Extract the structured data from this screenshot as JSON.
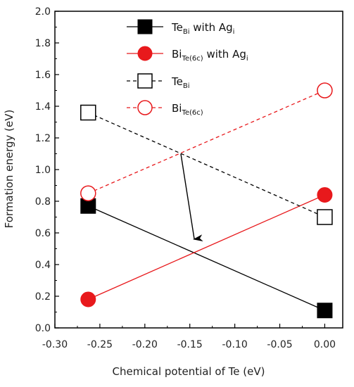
{
  "chart_data": {
    "type": "line",
    "xlabel": "Chemical potential of Te (eV)",
    "ylabel": "Formation energy (eV)",
    "xlim": [
      -0.3,
      0.02
    ],
    "ylim": [
      0.0,
      2.0
    ],
    "xticks": [
      -0.3,
      -0.25,
      -0.2,
      -0.15,
      -0.1,
      -0.05,
      0.0
    ],
    "xtick_labels": [
      "-0.30",
      "-0.25",
      "-0.20",
      "-0.15",
      "-0.10",
      "-0.05",
      "0.00"
    ],
    "yticks": [
      0.0,
      0.2,
      0.4,
      0.6,
      0.8,
      1.0,
      1.2,
      1.4,
      1.6,
      1.8,
      2.0
    ],
    "ytick_labels": [
      "0.0",
      "0.2",
      "0.4",
      "0.6",
      "0.8",
      "1.0",
      "1.2",
      "1.4",
      "1.6",
      "1.8",
      "2.0"
    ],
    "grid": false,
    "legend_position": "top-center",
    "series": [
      {
        "id": "tebi-agi",
        "label_main": "Te",
        "label_sub": "Bi",
        "label_rest": " with Ag",
        "label_rest_sub": "i",
        "color": "#000000",
        "dashed": false,
        "marker": "square",
        "filled": true,
        "x": [
          -0.263,
          0.0
        ],
        "y": [
          0.77,
          0.11
        ]
      },
      {
        "id": "bite-agi",
        "label_main": "Bi",
        "label_sub": "Te(6c)",
        "label_rest": " with Ag",
        "label_rest_sub": "i",
        "color": "#e8191c",
        "dashed": false,
        "marker": "circle",
        "filled": true,
        "x": [
          -0.263,
          0.0
        ],
        "y": [
          0.18,
          0.84
        ]
      },
      {
        "id": "tebi",
        "label_main": "Te",
        "label_sub": "Bi",
        "label_rest": "",
        "label_rest_sub": "",
        "color": "#000000",
        "dashed": true,
        "marker": "square",
        "filled": false,
        "x": [
          -0.263,
          0.0
        ],
        "y": [
          1.36,
          0.7
        ]
      },
      {
        "id": "bite",
        "label_main": "Bi",
        "label_sub": "Te(6c)",
        "label_rest": "",
        "label_rest_sub": "",
        "color": "#e8191c",
        "dashed": true,
        "marker": "circle",
        "filled": false,
        "x": [
          -0.263,
          0.0
        ],
        "y": [
          0.85,
          1.5
        ]
      }
    ],
    "annotations": [
      {
        "type": "arrow",
        "x_from": -0.16,
        "y_from": 1.1,
        "x_to": -0.145,
        "y_to": 0.56,
        "color": "#000000"
      }
    ]
  }
}
